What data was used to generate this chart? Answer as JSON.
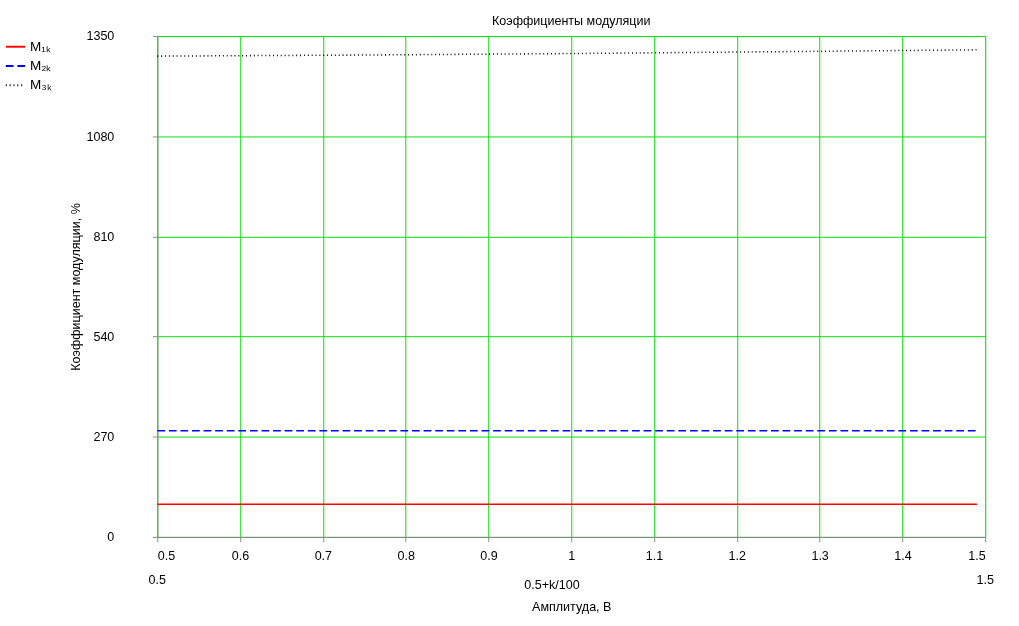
{
  "chart_data": {
    "type": "line",
    "title": "Коэффициенты модуляции",
    "xlabel": "Амплитуда, В",
    "ylabel": "Коэффициент модуляции, %",
    "xlim": [
      0.5,
      1.5
    ],
    "xticks": [
      0.5,
      0.6,
      0.7,
      0.8,
      0.9,
      1,
      1.1,
      1.2,
      1.3,
      1.4,
      1.5
    ],
    "ylim": [
      0,
      1350
    ],
    "yticks": [
      0,
      270,
      540,
      810,
      1080,
      1350
    ],
    "grid": true,
    "legend": "left",
    "marker": "none",
    "annotations": [
      "0.5+k/100",
      "0.5",
      "1.5"
    ],
    "series": [
      {
        "name": "M₁ₖ",
        "color": "#ff0000",
        "line_style": "solid",
        "x": [
          0.5,
          1.49
        ],
        "values": [
          88,
          88
        ]
      },
      {
        "name": "M₂ₖ",
        "color": "#0000ff",
        "line_style": "dashed",
        "x": [
          0.5,
          1.49
        ],
        "values": [
          286,
          286
        ]
      },
      {
        "name": "M₃ₖ",
        "color": "#000000",
        "line_style": "dotted",
        "x": [
          0.5,
          0.75,
          1.0,
          1.25,
          1.49
        ],
        "values": [
          1296,
          1299,
          1303,
          1308,
          1313
        ]
      }
    ]
  }
}
